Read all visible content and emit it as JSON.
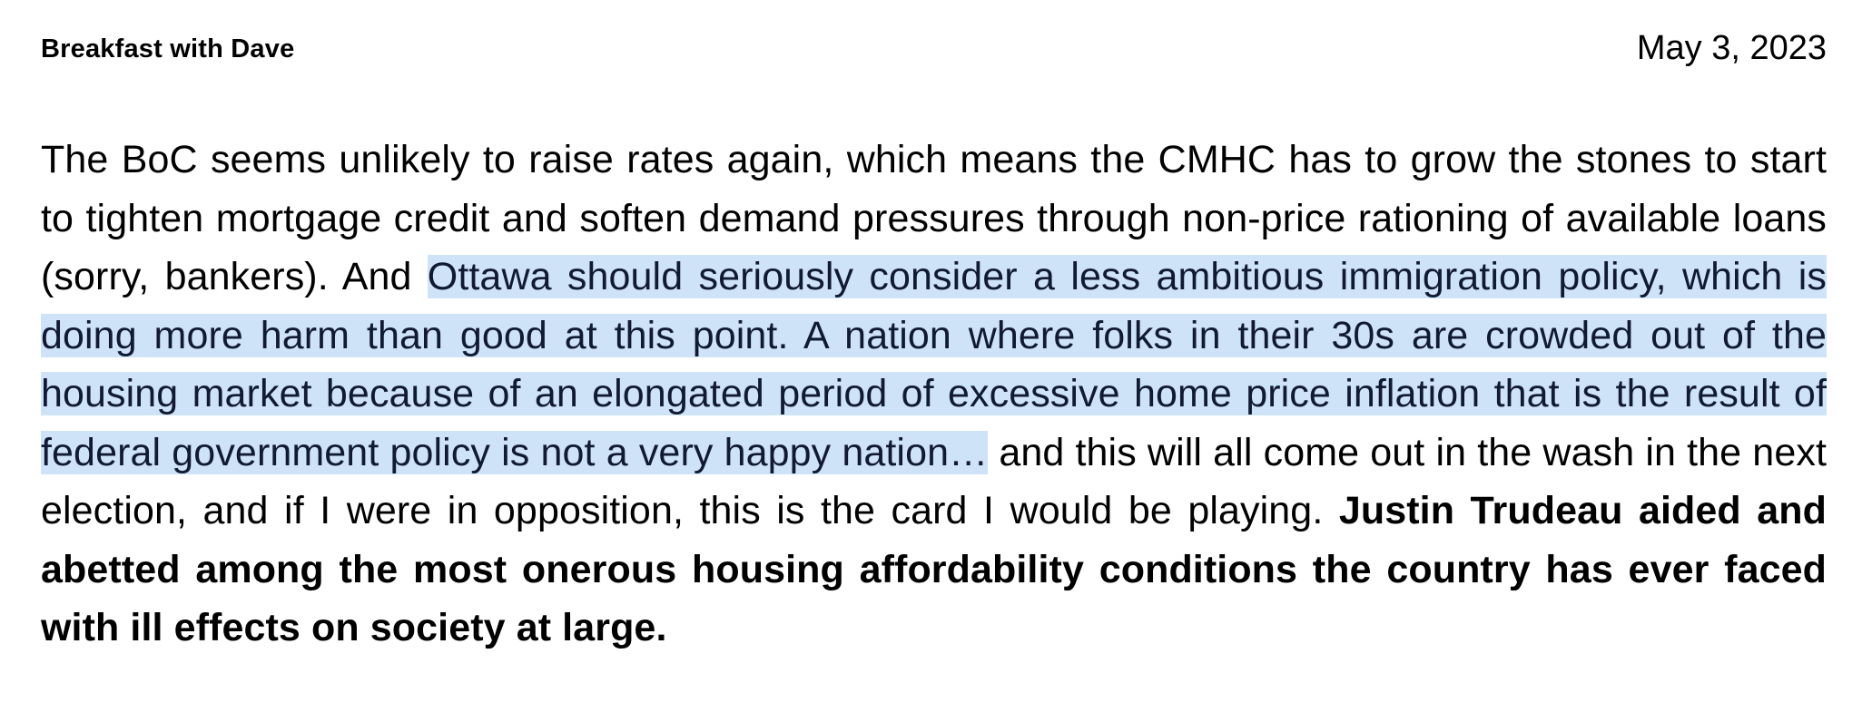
{
  "header": {
    "title": "Breakfast with Dave",
    "date": "May 3, 2023"
  },
  "paragraph": {
    "intro": "The BoC seems unlikely to raise rates again, which means the CMHC has to grow the stones to start to tighten mortgage credit and soften demand pressures through non-price rationing of available loans (sorry, bankers). And ",
    "highlighted": "Ottawa should seriously consider a less ambitious immigration policy, which is doing more harm than good at this point. A nation where folks in their 30s are crowded out of the housing market because of an elongated period of excessive home price inflation that is the result of federal government policy is not a very happy nation…",
    "middle": " and this will all come out in the wash in the next election, and if I were in opposition, this is the card I would be playing. ",
    "bold_conclusion": "Justin Trudeau aided and abetted among the most onerous housing affordability conditions the country has ever faced with ill effects on society at large."
  },
  "colors": {
    "highlight": "#cfe3f8",
    "highlight_text": "#111a33",
    "text": "#000000",
    "background": "#ffffff"
  }
}
